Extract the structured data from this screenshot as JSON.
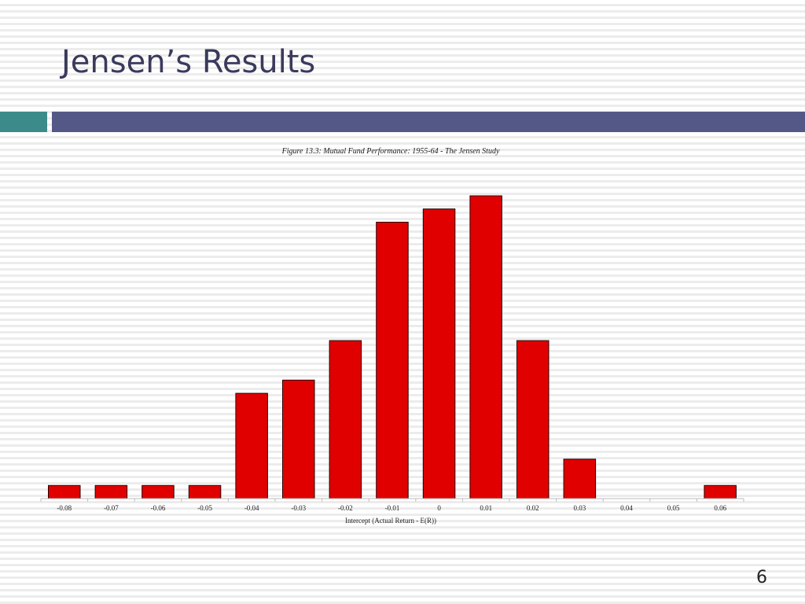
{
  "slide": {
    "title": "Jensen’s Results",
    "page_number": "6"
  },
  "colors": {
    "bar_fill": "#e00000",
    "bar_stroke": "#2a0000",
    "title_color": "#3a3a5c",
    "accent_teal": "#3c8b8b",
    "accent_blue": "#545887"
  },
  "chart_data": {
    "type": "bar",
    "title": "Figure 13.3: Mutual Fund Performance: 1955-64 - The Jensen Study",
    "xlabel": "Intercept (Actual Return - E(R))",
    "ylabel": "",
    "categories": [
      "-0.08",
      "-0.07",
      "-0.06",
      "-0.05",
      "-0.04",
      "-0.03",
      "-0.02",
      "-0.01",
      "0",
      "0.01",
      "0.02",
      "0.03",
      "0.04",
      "0.05",
      "0.06"
    ],
    "values": [
      1,
      1,
      1,
      1,
      8,
      9,
      12,
      21,
      22,
      23,
      12,
      3,
      0,
      0,
      1
    ],
    "ylim": [
      0,
      23
    ],
    "grid": false,
    "legend": "none"
  }
}
